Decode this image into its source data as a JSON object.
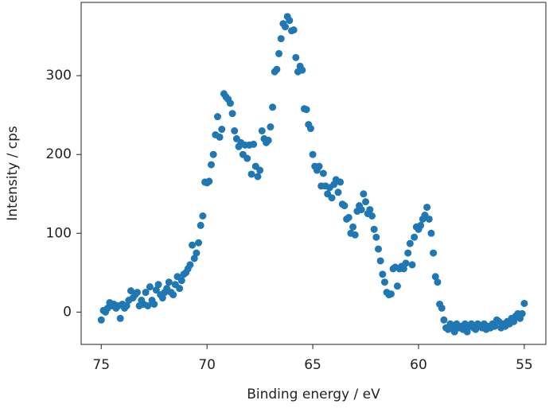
{
  "chart_data": {
    "type": "scatter",
    "x_label": "Binding energy / eV",
    "y_label": "Intensity / cps",
    "color": "#1f77b4",
    "xlim": [
      75.95,
      53.98
    ],
    "ylim": [
      -41,
      393
    ],
    "xticks": [
      75,
      70,
      65,
      60,
      55
    ],
    "yticks": [
      0,
      100,
      200,
      300
    ],
    "x": [
      75,
      74.9,
      74.8,
      74.7,
      74.6,
      74.5,
      74.4,
      74.3,
      74.2,
      74.1,
      74,
      73.9,
      73.8,
      73.7,
      73.6,
      73.5,
      73.4,
      73.3,
      73.2,
      73.1,
      73,
      72.9,
      72.8,
      72.7,
      72.6,
      72.5,
      72.4,
      72.3,
      72.2,
      72.1,
      72,
      71.9,
      71.8,
      71.7,
      71.6,
      71.5,
      71.4,
      71.3,
      71.2,
      71.1,
      71,
      70.9,
      70.8,
      70.7,
      70.6,
      70.5,
      70.4,
      70.3,
      70.2,
      70.1,
      70,
      69.9,
      69.8,
      69.7,
      69.6,
      69.5,
      69.4,
      69.3,
      69.2,
      69.1,
      69,
      68.9,
      68.8,
      68.7,
      68.6,
      68.5,
      68.4,
      68.3,
      68.2,
      68.1,
      68,
      67.9,
      67.8,
      67.7,
      67.6,
      67.5,
      67.4,
      67.3,
      67.2,
      67.1,
      67,
      66.9,
      66.8,
      66.7,
      66.6,
      66.5,
      66.4,
      66.3,
      66.2,
      66.1,
      66,
      65.9,
      65.8,
      65.7,
      65.6,
      65.5,
      65.4,
      65.3,
      65.2,
      65.1,
      65,
      64.9,
      64.8,
      64.7,
      64.6,
      64.5,
      64.4,
      64.3,
      64.2,
      64.1,
      64,
      63.9,
      63.8,
      63.7,
      63.6,
      63.5,
      63.4,
      63.3,
      63.2,
      63.1,
      63,
      62.9,
      62.8,
      62.7,
      62.6,
      62.5,
      62.4,
      62.3,
      62.2,
      62.1,
      62,
      61.9,
      61.8,
      61.7,
      61.6,
      61.5,
      61.4,
      61.3,
      61.2,
      61.1,
      61,
      60.9,
      60.8,
      60.7,
      60.6,
      60.5,
      60.4,
      60.3,
      60.2,
      60.1,
      60,
      59.9,
      59.8,
      59.7,
      59.6,
      59.5,
      59.4,
      59.3,
      59.2,
      59.1,
      59,
      58.9,
      58.8,
      58.7,
      58.6,
      58.5,
      58.4,
      58.3,
      58.2,
      58.1,
      58,
      57.9,
      57.8,
      57.7,
      57.6,
      57.5,
      57.4,
      57.3,
      57.2,
      57.1,
      57,
      56.9,
      56.8,
      56.7,
      56.6,
      56.5,
      56.4,
      56.3,
      56.2,
      56.1,
      56,
      55.9,
      55.8,
      55.7,
      55.6,
      55.5,
      55.4,
      55.3,
      55.2,
      55.1,
      55
    ],
    "values": [
      -10,
      2,
      0,
      5,
      12,
      8,
      10,
      5,
      8,
      -8,
      10,
      5,
      8,
      15,
      27,
      18,
      22,
      25,
      8,
      15,
      10,
      25,
      8,
      32,
      15,
      10,
      28,
      35,
      22,
      18,
      25,
      30,
      38,
      25,
      22,
      35,
      45,
      30,
      40,
      48,
      50,
      55,
      60,
      85,
      68,
      75,
      88,
      110,
      122,
      165,
      164,
      166,
      187,
      200,
      225,
      248,
      222,
      232,
      277,
      273,
      270,
      265,
      252,
      230,
      220,
      210,
      215,
      200,
      212,
      195,
      212,
      175,
      213,
      185,
      172,
      180,
      230,
      220,
      215,
      218,
      235,
      260,
      305,
      308,
      328,
      347,
      366,
      362,
      375,
      370,
      357,
      358,
      323,
      305,
      312,
      307,
      258,
      257,
      238,
      233,
      200,
      185,
      180,
      185,
      160,
      176,
      160,
      150,
      158,
      145,
      162,
      168,
      152,
      165,
      137,
      135,
      118,
      120,
      100,
      108,
      98,
      128,
      135,
      130,
      150,
      140,
      125,
      130,
      122,
      105,
      95,
      80,
      65,
      48,
      38,
      25,
      22,
      23,
      55,
      57,
      33,
      55,
      58,
      55,
      62,
      75,
      87,
      60,
      95,
      108,
      105,
      110,
      118,
      123,
      133,
      118,
      100,
      75,
      45,
      38,
      10,
      5,
      -10,
      -20,
      -22,
      -15,
      -18,
      -25,
      -15,
      -20,
      -18,
      -22,
      -15,
      -25,
      -18,
      -15,
      -20,
      -22,
      -15,
      -18,
      -20,
      -15,
      -22,
      -18,
      -20,
      -15,
      -18,
      -10,
      -12,
      -20,
      -15,
      -18,
      -12,
      -15,
      -8,
      -12,
      -5,
      -2,
      -8,
      -2,
      11
    ]
  }
}
